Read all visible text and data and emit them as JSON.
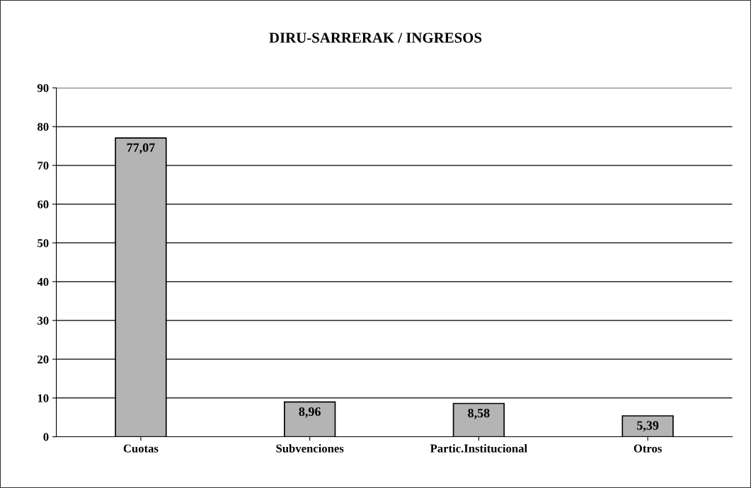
{
  "chart_data": {
    "type": "bar",
    "title": "DIRU-SARRERAK / INGRESOS",
    "categories": [
      "Cuotas",
      "Subvenciones",
      "Partic.Institucional",
      "Otros"
    ],
    "values": [
      77.07,
      8.96,
      8.58,
      5.39
    ],
    "value_labels": [
      "77,07",
      "8,96",
      "8,58",
      "5,39"
    ],
    "color": "#b4b4b4",
    "ylim": [
      0,
      90
    ],
    "yticks": [
      0,
      10,
      20,
      30,
      40,
      50,
      60,
      70,
      80,
      90
    ],
    "grid": "y",
    "legend": false
  }
}
